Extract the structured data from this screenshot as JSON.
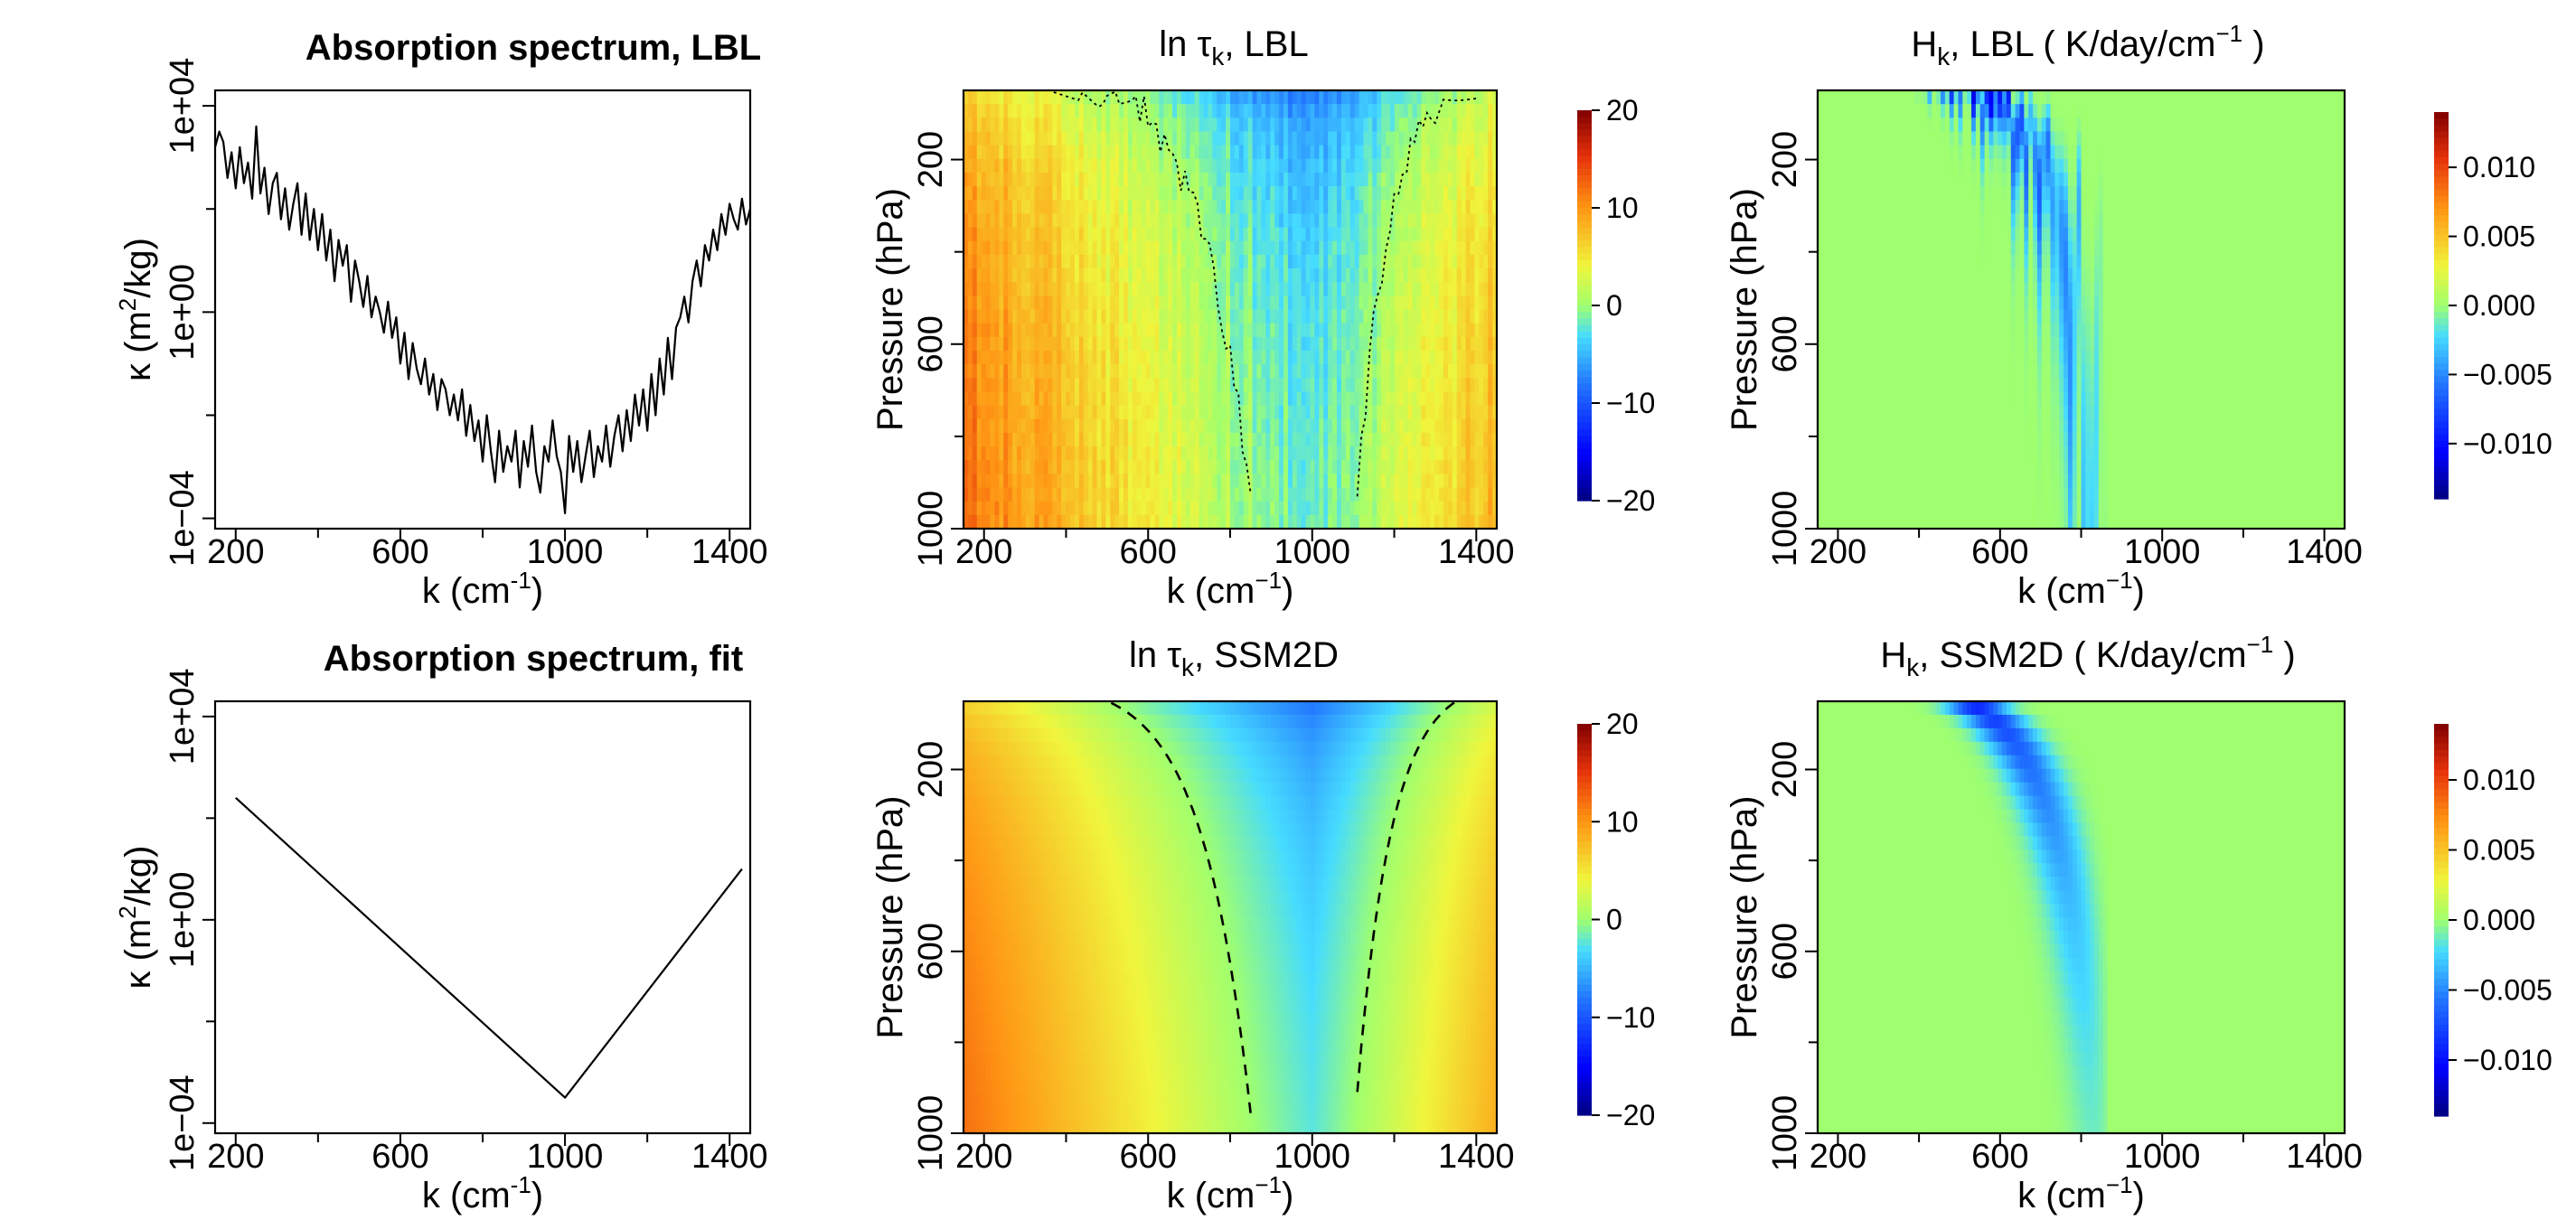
{
  "chart_data": [
    {
      "type": "line",
      "id": "spec-lbl",
      "title": "Absorption spectrum, LBL",
      "xlabel": "k  (cm",
      "xlabel_sup": "-1",
      "xlabel_end": ")",
      "ylabel_main": "κ  (m",
      "ylabel_sup": "2",
      "ylabel_end": "/kg)",
      "xlim": [
        150,
        1450
      ],
      "ylim_log10": [
        -4.2,
        4.3
      ],
      "x_ticks": [
        200,
        600,
        1000,
        1400
      ],
      "x_ticklabels": [
        "200",
        "600",
        "1000",
        "1400"
      ],
      "x_minor_ticks": [
        400,
        800,
        1200
      ],
      "y_ticks_log10": [
        -4,
        0,
        4
      ],
      "y_ticklabels": [
        "1e−04",
        "1e+00",
        "1e+04"
      ],
      "y_minor_ticks_log10": [
        -2,
        2
      ],
      "series_description": "noisy line-by-line spectrum (log10 of kappa)",
      "x": [
        150,
        160,
        170,
        180,
        190,
        200,
        210,
        220,
        230,
        240,
        250,
        260,
        270,
        280,
        290,
        300,
        310,
        320,
        330,
        340,
        350,
        360,
        370,
        380,
        390,
        400,
        410,
        420,
        430,
        440,
        450,
        460,
        470,
        480,
        490,
        500,
        510,
        520,
        530,
        540,
        550,
        560,
        570,
        580,
        590,
        600,
        610,
        620,
        630,
        640,
        650,
        660,
        670,
        680,
        690,
        700,
        710,
        720,
        730,
        740,
        750,
        760,
        770,
        780,
        790,
        800,
        810,
        820,
        830,
        840,
        850,
        860,
        870,
        880,
        890,
        900,
        910,
        920,
        930,
        940,
        950,
        960,
        970,
        980,
        990,
        1000,
        1010,
        1020,
        1030,
        1040,
        1050,
        1060,
        1070,
        1080,
        1090,
        1100,
        1110,
        1120,
        1130,
        1140,
        1150,
        1160,
        1170,
        1180,
        1190,
        1200,
        1210,
        1220,
        1230,
        1240,
        1250,
        1260,
        1270,
        1280,
        1290,
        1300,
        1310,
        1320,
        1330,
        1340,
        1350,
        1360,
        1370,
        1380,
        1390,
        1400,
        1410,
        1420,
        1430,
        1440,
        1450
      ],
      "y": [
        3.2,
        3.5,
        3.3,
        2.6,
        3.1,
        2.4,
        3.2,
        2.5,
        2.9,
        2.2,
        3.6,
        2.3,
        2.8,
        1.9,
        2.5,
        2.7,
        1.8,
        2.4,
        1.6,
        2.1,
        2.5,
        1.5,
        2.3,
        1.4,
        2.0,
        1.2,
        1.9,
        1.0,
        1.6,
        0.6,
        1.4,
        0.9,
        1.3,
        0.2,
        1.0,
        0.6,
        0.1,
        0.7,
        -0.1,
        0.3,
        0.0,
        -0.4,
        0.2,
        -0.5,
        -0.1,
        -1.0,
        -0.4,
        -1.3,
        -0.6,
        -1.1,
        -1.4,
        -0.9,
        -1.6,
        -1.2,
        -1.9,
        -1.3,
        -1.5,
        -2.0,
        -1.6,
        -2.1,
        -1.5,
        -2.4,
        -1.8,
        -2.5,
        -2.1,
        -2.9,
        -2.0,
        -2.7,
        -3.3,
        -2.3,
        -3.1,
        -2.6,
        -2.9,
        -2.3,
        -3.4,
        -2.5,
        -3.0,
        -2.2,
        -3.1,
        -3.5,
        -2.6,
        -2.9,
        -2.1,
        -2.8,
        -3.1,
        -3.9,
        -2.4,
        -3.1,
        -2.5,
        -3.3,
        -2.8,
        -2.3,
        -3.2,
        -2.6,
        -2.9,
        -2.2,
        -3.0,
        -2.4,
        -2.0,
        -2.7,
        -1.9,
        -2.5,
        -1.6,
        -2.2,
        -1.5,
        -2.3,
        -1.2,
        -2.0,
        -0.9,
        -1.6,
        -0.5,
        -1.3,
        -0.3,
        -0.1,
        0.3,
        -0.2,
        0.6,
        1.0,
        0.5,
        1.3,
        1.0,
        1.6,
        1.2,
        1.9,
        1.5,
        2.1,
        1.8,
        1.6,
        2.2,
        1.7,
        2.0
      ]
    },
    {
      "type": "heatmap",
      "id": "tau-lbl",
      "title_prefix": "ln τ",
      "title_sub": "k",
      "title_suffix": ", LBL",
      "xlabel": "k  (cm",
      "xlabel_sup": "−1",
      "xlabel_end": ")",
      "ylabel": "Pressure (hPa)",
      "xlim": [
        150,
        1450
      ],
      "ylim": [
        50,
        1000
      ],
      "x_ticks": [
        200,
        600,
        1000,
        1400
      ],
      "x_ticklabels": [
        "200",
        "600",
        "1000",
        "1400"
      ],
      "x_minor_ticks": [
        400,
        800,
        1200
      ],
      "y_ticks": [
        200,
        600,
        1000
      ],
      "y_ticklabels": [
        "200",
        "600",
        "1000"
      ],
      "y_minor_ticks": [
        400,
        800
      ],
      "value_range": [
        -20,
        20
      ],
      "colorbar_ticks": [
        20,
        10,
        0,
        -10,
        -20
      ],
      "colorbar_ticklabels": [
        "20",
        "10",
        "0",
        "−10",
        "−20"
      ],
      "contour_note": "dotted curve where ln τ = 0",
      "model": "noisy"
    },
    {
      "type": "heatmap",
      "id": "heat-lbl",
      "title_prefix": "H",
      "title_sub": "k",
      "title_suffix": ", LBL  ( K/day/cm",
      "title_sup": "−1",
      "title_end": " )",
      "xlabel": "k  (cm",
      "xlabel_sup": "−1",
      "xlabel_end": ")",
      "ylabel": "Pressure (hPa)",
      "xlim": [
        150,
        1450
      ],
      "ylim": [
        50,
        1000
      ],
      "x_ticks": [
        200,
        600,
        1000,
        1400
      ],
      "x_ticklabels": [
        "200",
        "600",
        "1000",
        "1400"
      ],
      "x_minor_ticks": [
        400,
        800,
        1200
      ],
      "y_ticks": [
        200,
        600,
        1000
      ],
      "y_ticklabels": [
        "200",
        "600",
        "1000"
      ],
      "y_minor_ticks": [
        400,
        800
      ],
      "value_range": [
        -0.014,
        0.014
      ],
      "colorbar_ticks": [
        0.01,
        0.005,
        0,
        -0.005,
        -0.01
      ],
      "colorbar_ticklabels": [
        "0.010",
        "0.005",
        "0.000",
        "−0.005",
        "−0.010"
      ],
      "model": "noisy"
    },
    {
      "type": "line",
      "id": "spec-fit",
      "title": "Absorption spectrum, fit",
      "xlabel": "k  (cm",
      "xlabel_sup": "-1",
      "xlabel_end": ")",
      "ylabel_main": "κ  (m",
      "ylabel_sup": "2",
      "ylabel_end": "/kg)",
      "xlim": [
        150,
        1450
      ],
      "ylim_log10": [
        -4.2,
        4.3
      ],
      "x_ticks": [
        200,
        600,
        1000,
        1400
      ],
      "x_ticklabels": [
        "200",
        "600",
        "1000",
        "1400"
      ],
      "x_minor_ticks": [
        400,
        800,
        1200
      ],
      "y_ticks_log10": [
        -4,
        0,
        4
      ],
      "y_ticklabels": [
        "1e−04",
        "1e+00",
        "1e+04"
      ],
      "y_minor_ticks_log10": [
        -2,
        2
      ],
      "series_description": "piecewise-linear fit in log space",
      "x": [
        200,
        1000,
        1430
      ],
      "y": [
        2.4,
        -3.5,
        1.0
      ]
    },
    {
      "type": "heatmap",
      "id": "tau-fit",
      "title_prefix": "ln τ",
      "title_sub": "k",
      "title_suffix": ", SSM2D",
      "xlabel": "k  (cm",
      "xlabel_sup": "−1",
      "xlabel_end": ")",
      "ylabel": "Pressure (hPa)",
      "xlim": [
        150,
        1450
      ],
      "ylim": [
        50,
        1000
      ],
      "x_ticks": [
        200,
        600,
        1000,
        1400
      ],
      "x_ticklabels": [
        "200",
        "600",
        "1000",
        "1400"
      ],
      "x_minor_ticks": [
        400,
        800,
        1200
      ],
      "y_ticks": [
        200,
        600,
        1000
      ],
      "y_ticklabels": [
        "200",
        "600",
        "1000"
      ],
      "y_minor_ticks": [
        400,
        800
      ],
      "value_range": [
        -20,
        20
      ],
      "colorbar_ticks": [
        20,
        10,
        0,
        -10,
        -20
      ],
      "colorbar_ticklabels": [
        "20",
        "10",
        "0",
        "−10",
        "−20"
      ],
      "contour_note": "dashed curve where ln τ = 0",
      "model": "smooth"
    },
    {
      "type": "heatmap",
      "id": "heat-fit",
      "title_prefix": "H",
      "title_sub": "k",
      "title_suffix": ", SSM2D  ( K/day/cm",
      "title_sup": "−1",
      "title_end": " )",
      "xlabel": "k  (cm",
      "xlabel_sup": "−1",
      "xlabel_end": ")",
      "ylabel": "Pressure (hPa)",
      "xlim": [
        150,
        1450
      ],
      "ylim": [
        50,
        1000
      ],
      "x_ticks": [
        200,
        600,
        1000,
        1400
      ],
      "x_ticklabels": [
        "200",
        "600",
        "1000",
        "1400"
      ],
      "x_minor_ticks": [
        400,
        800,
        1200
      ],
      "y_ticks": [
        200,
        600,
        1000
      ],
      "y_ticklabels": [
        "200",
        "600",
        "1000"
      ],
      "y_minor_ticks": [
        400,
        800
      ],
      "value_range": [
        -0.014,
        0.014
      ],
      "colorbar_ticks": [
        0.01,
        0.005,
        0,
        -0.005,
        -0.01
      ],
      "colorbar_ticklabels": [
        "0.010",
        "0.005",
        "0.000",
        "−0.005",
        "−0.010"
      ],
      "model": "smooth"
    }
  ]
}
